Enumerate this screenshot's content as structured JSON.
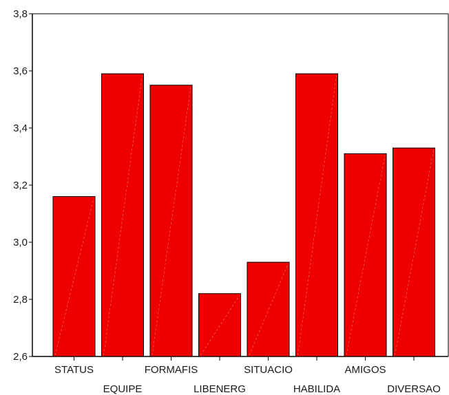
{
  "chart_data": {
    "type": "bar",
    "categories": [
      "STATUS",
      "EQUIPE",
      "FORMAFIS",
      "LIBENERG",
      "SITUACIO",
      "HABILIDA",
      "AMIGOS",
      "DIVERSAO"
    ],
    "values": [
      3.16,
      3.59,
      3.55,
      2.82,
      2.93,
      3.59,
      3.31,
      3.33
    ],
    "ylim": [
      2.6,
      3.8
    ],
    "yticks": [
      "2,6",
      "2,8",
      "3,0",
      "3,2",
      "3,4",
      "3,6",
      "3,8"
    ],
    "ytick_values": [
      2.6,
      2.8,
      3.0,
      3.2,
      3.4,
      3.6,
      3.8
    ],
    "bar_color": "#ee0000",
    "grid": false,
    "legend": "none"
  }
}
